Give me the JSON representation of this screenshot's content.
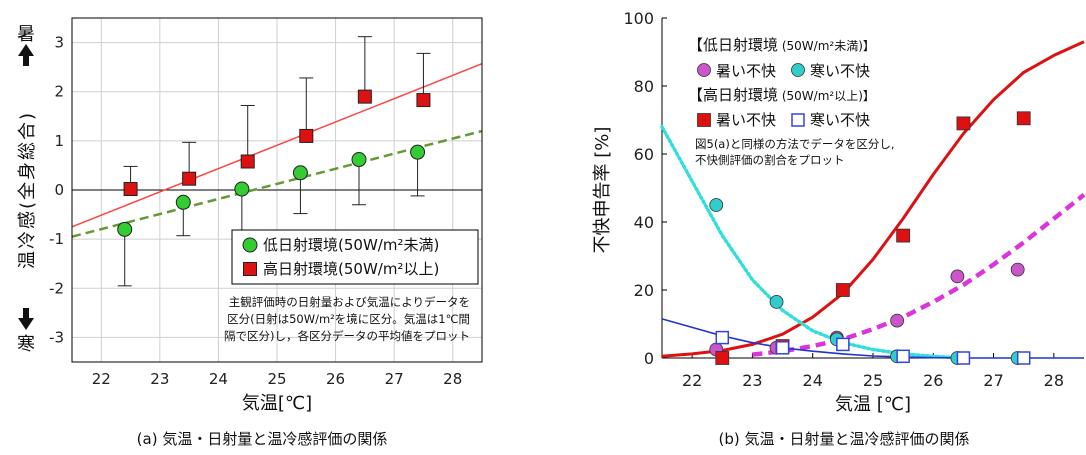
{
  "chart_data": [
    {
      "type": "scatter",
      "caption": "(a) 気温・日射量と温冷感評価の関係",
      "xlabel": "気温[℃]",
      "ylabel": "温冷感(全身総合)",
      "ylabel_top": "暑",
      "ylabel_bottom": "寒",
      "xlim": [
        21.5,
        28.5
      ],
      "ylim": [
        -3.5,
        3.5
      ],
      "xticks": [
        22,
        23,
        24,
        25,
        26,
        27,
        28
      ],
      "yticks": [
        -3,
        -2,
        -1,
        0,
        1,
        2,
        3
      ],
      "grid": true,
      "legend_position": "lower-right",
      "series": [
        {
          "name": "低日射環境(50W/m²未満)",
          "color": "#33cc33",
          "marker": "circle",
          "x": [
            22.4,
            23.4,
            24.4,
            25.4,
            26.4,
            27.4
          ],
          "y": [
            -0.8,
            -0.25,
            0.02,
            0.35,
            0.62,
            0.77
          ],
          "err_up": [
            -1.95,
            -0.93,
            -0.85,
            -0.48,
            -0.3,
            -0.12
          ],
          "err_low": [
            -1.95,
            -0.93,
            -0.85,
            -0.48,
            -0.3,
            -0.12
          ],
          "err_hi": [
            -0.8,
            -0.25,
            0.02,
            0.35,
            0.62,
            0.77
          ],
          "fit": {
            "style": "dashed",
            "color": "#669933",
            "x": [
              21.5,
              28.5
            ],
            "y": [
              -0.95,
              1.2
            ]
          }
        },
        {
          "name": "高日射環境(50W/m²以上)",
          "color": "#dd1111",
          "marker": "square",
          "x": [
            22.5,
            23.5,
            24.5,
            25.5,
            26.5,
            27.5
          ],
          "y": [
            0.02,
            0.23,
            0.58,
            1.1,
            1.9,
            1.83
          ],
          "err_low": [
            0.02,
            0.23,
            0.58,
            1.1,
            1.9,
            1.83
          ],
          "err_hi": [
            0.48,
            0.97,
            1.72,
            2.28,
            3.12,
            2.78
          ],
          "fit": {
            "style": "solid",
            "color": "#ff4444",
            "x": [
              21.5,
              28.5
            ],
            "y": [
              -0.75,
              2.57
            ]
          }
        }
      ],
      "annotation": [
        "主観評価時の日射量および気温によりデータを",
        "区分(日射は50W/m²を境に区分。気温は1℃間",
        "隔で区分)し，各区分データの平均値をプロット"
      ]
    },
    {
      "type": "scatter",
      "caption": "(b) 気温・日射量と温冷感評価の関係",
      "xlabel": "気温 [℃]",
      "ylabel": "不快申告率 [%]",
      "xlim": [
        21.5,
        28.5
      ],
      "ylim": [
        0,
        100
      ],
      "xticks": [
        22,
        23,
        24,
        25,
        26,
        27,
        28
      ],
      "yticks": [
        0,
        20,
        40,
        60,
        80,
        100
      ],
      "grid": false,
      "legend_position": "top-left",
      "legend": {
        "low_title": "【低日射環境",
        "low_unit": "(50W/m²未満)】",
        "high_title": "【高日射環境",
        "high_unit": "(50W/m²以上)】",
        "hot": "暑い不快",
        "cold": "寒い不快"
      },
      "annotation": [
        "図5(a)と同様の方法でデータを区分し,",
        "不快側評価の割合をプロット"
      ],
      "series": [
        {
          "name": "低日射 暑い不快",
          "color": "#cc55cc",
          "marker": "circle",
          "x": [
            22.4,
            23.4,
            24.4,
            25.4,
            26.4,
            27.4
          ],
          "y": [
            2.5,
            3,
            6,
            11,
            24,
            26
          ]
        },
        {
          "name": "低日射 寒い不快",
          "color": "#33cccc",
          "marker": "circle",
          "x": [
            22.4,
            23.4,
            24.4,
            25.4,
            26.4,
            27.4
          ],
          "y": [
            45,
            16.5,
            5.5,
            0.5,
            0,
            0
          ]
        },
        {
          "name": "高日射 暑い不快",
          "color": "#dd1111",
          "marker": "square",
          "x": [
            22.5,
            23.5,
            24.5,
            25.5,
            26.5,
            27.5
          ],
          "y": [
            0,
            3.5,
            20,
            36,
            69,
            70.5
          ]
        },
        {
          "name": "高日射 寒い不快",
          "color": "#3344dd",
          "marker": "open-square",
          "x": [
            22.5,
            23.5,
            24.5,
            25.5,
            26.5,
            27.5
          ],
          "y": [
            6,
            3,
            4,
            0.5,
            0,
            0
          ]
        }
      ],
      "curves": [
        {
          "color": "#dd1111",
          "style": "solid",
          "x": [
            21.5,
            22,
            22.5,
            23,
            23.5,
            24,
            24.5,
            25,
            25.5,
            26,
            26.5,
            27,
            27.5,
            28,
            28.5
          ],
          "y": [
            0.5,
            1.2,
            2.2,
            4,
            7,
            12,
            19,
            29,
            41,
            54,
            66,
            76,
            84,
            89,
            93
          ]
        },
        {
          "color": "#dd33dd",
          "style": "dashed",
          "x": [
            23,
            23.5,
            24,
            24.5,
            25,
            25.5,
            26,
            26.5,
            27,
            27.5,
            28,
            28.5
          ],
          "y": [
            1,
            2,
            3.5,
            5.5,
            8.5,
            12,
            16.5,
            21.5,
            27.5,
            34,
            41,
            48
          ]
        },
        {
          "color": "#33dddd",
          "style": "dotted",
          "x": [
            21.5,
            22,
            22.5,
            23,
            23.5,
            24,
            24.5,
            25,
            25.5,
            26,
            26.5
          ],
          "y": [
            68,
            52,
            36,
            23,
            14,
            8,
            4.5,
            2.5,
            1.2,
            0.5,
            0
          ]
        },
        {
          "color": "#2233cc",
          "style": "solid",
          "x": [
            21.5,
            22,
            22.5,
            23,
            23.5,
            24,
            24.5,
            25,
            25.5,
            26,
            26.5,
            27,
            28.5
          ],
          "y": [
            11.5,
            9,
            6.5,
            4.5,
            3,
            2,
            1.2,
            0.6,
            0.3,
            0.1,
            0,
            0,
            0
          ]
        }
      ]
    }
  ]
}
